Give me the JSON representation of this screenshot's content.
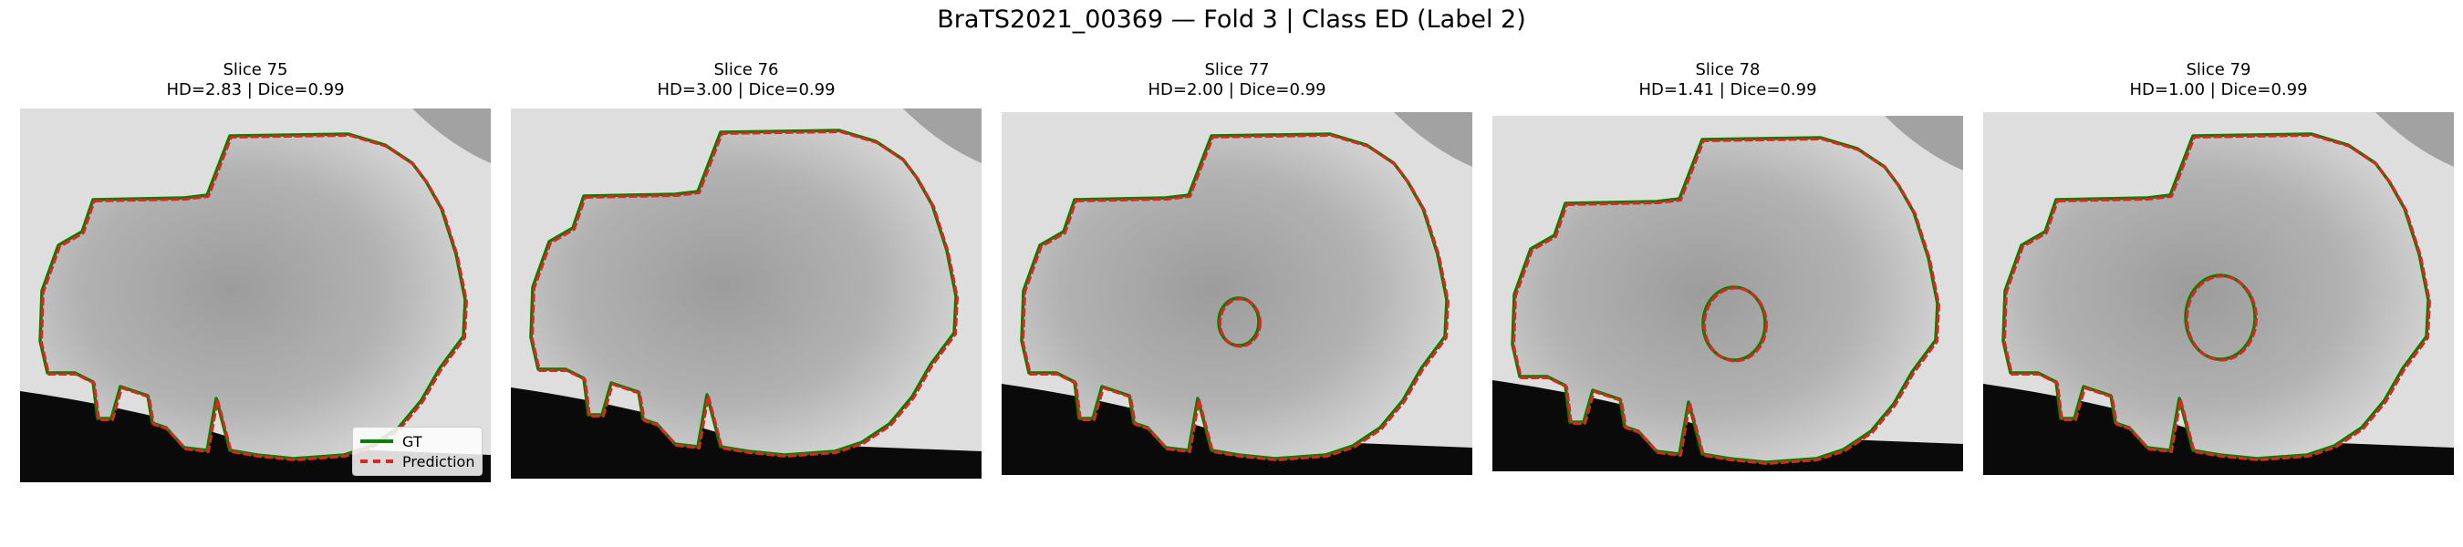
{
  "figure": {
    "title": "BraTS2021_00369 — Fold 3 | Class ED (Label 2)"
  },
  "panels": [
    {
      "slice": "Slice 75",
      "metrics": "HD=2.83 | Dice=0.99"
    },
    {
      "slice": "Slice 76",
      "metrics": "HD=3.00 | Dice=0.99"
    },
    {
      "slice": "Slice 77",
      "metrics": "HD=2.00 | Dice=0.99"
    },
    {
      "slice": "Slice 78",
      "metrics": "HD=1.41 | Dice=0.99"
    },
    {
      "slice": "Slice 79",
      "metrics": "HD=1.00 | Dice=0.99"
    }
  ],
  "legend": {
    "gt_label": "GT",
    "pred_label": "Prediction",
    "gt_color": "#008000",
    "pred_color": "#e8211d"
  }
}
